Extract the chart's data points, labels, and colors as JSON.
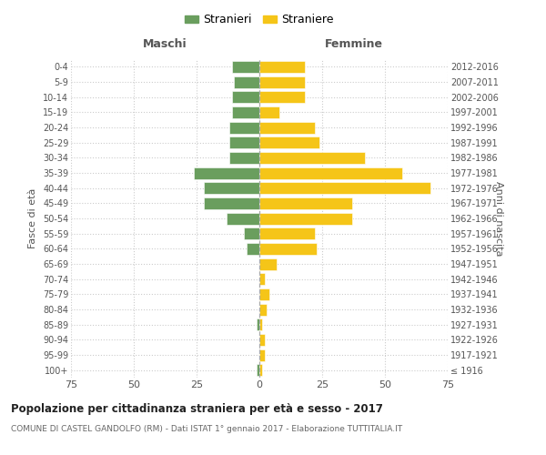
{
  "age_groups": [
    "100+",
    "95-99",
    "90-94",
    "85-89",
    "80-84",
    "75-79",
    "70-74",
    "65-69",
    "60-64",
    "55-59",
    "50-54",
    "45-49",
    "40-44",
    "35-39",
    "30-34",
    "25-29",
    "20-24",
    "15-19",
    "10-14",
    "5-9",
    "0-4"
  ],
  "birth_years": [
    "≤ 1916",
    "1917-1921",
    "1922-1926",
    "1927-1931",
    "1932-1936",
    "1937-1941",
    "1942-1946",
    "1947-1951",
    "1952-1956",
    "1957-1961",
    "1962-1966",
    "1967-1971",
    "1972-1976",
    "1977-1981",
    "1982-1986",
    "1987-1991",
    "1992-1996",
    "1997-2001",
    "2002-2006",
    "2007-2011",
    "2012-2016"
  ],
  "maschi": [
    1,
    0,
    0,
    1,
    0,
    0,
    0,
    0,
    5,
    6,
    13,
    22,
    22,
    26,
    12,
    12,
    12,
    11,
    11,
    10,
    11
  ],
  "femmine": [
    1,
    2,
    2,
    1,
    3,
    4,
    2,
    7,
    23,
    22,
    37,
    37,
    68,
    57,
    42,
    24,
    22,
    8,
    18,
    18,
    18
  ],
  "maschi_color": "#6a9e5e",
  "femmine_color": "#f5c518",
  "background_color": "#ffffff",
  "grid_color": "#cccccc",
  "title": "Popolazione per cittadinanza straniera per età e sesso - 2017",
  "subtitle": "COMUNE DI CASTEL GANDOLFO (RM) - Dati ISTAT 1° gennaio 2017 - Elaborazione TUTTITALIA.IT",
  "xlabel_left": "Maschi",
  "xlabel_right": "Femmine",
  "ylabel_left": "Fasce di età",
  "ylabel_right": "Anni di nascita",
  "legend_stranieri": "Stranieri",
  "legend_straniere": "Straniere",
  "xlim": 75
}
